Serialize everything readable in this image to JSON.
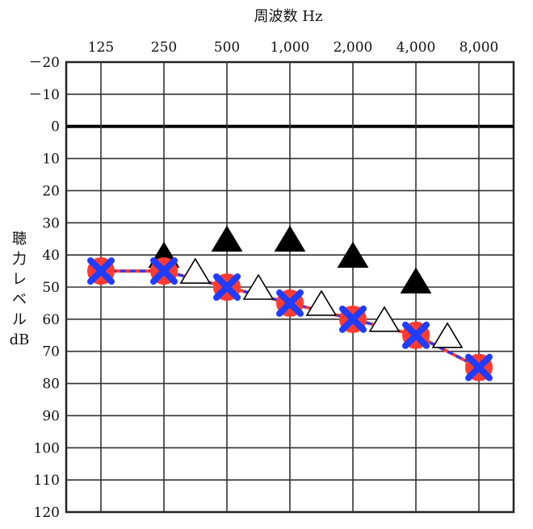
{
  "chart_data": {
    "type": "audiogram",
    "title": "",
    "xlabel": "周波数 Hz",
    "ylabel": "聴力レベル dB",
    "x_categories": [
      "125",
      "250",
      "500",
      "1,000",
      "2,000",
      "4,000",
      "8,000"
    ],
    "x_values_hz": [
      125,
      250,
      500,
      1000,
      2000,
      4000,
      8000
    ],
    "y_ticks": [
      "－20",
      "－10",
      "0",
      "10",
      "20",
      "30",
      "40",
      "50",
      "60",
      "70",
      "80",
      "90",
      "100",
      "110",
      "120"
    ],
    "ylim": [
      -20,
      120
    ],
    "y_inverted": true,
    "grid": true,
    "series": [
      {
        "marker": "circle",
        "color": "#ff3b30",
        "x": [
          125,
          250,
          500,
          1000,
          2000,
          4000,
          8000
        ],
        "values": [
          45,
          45,
          50,
          55,
          60,
          65,
          75
        ]
      },
      {
        "marker": "cross",
        "color": "#1f3cff",
        "x": [
          125,
          250,
          500,
          1000,
          2000,
          4000,
          8000
        ],
        "values": [
          45,
          45,
          50,
          55,
          60,
          65,
          75
        ]
      },
      {
        "marker": "filled-triangle",
        "color": "#000000",
        "x": [
          250,
          500,
          1000,
          2000,
          4000
        ],
        "values": [
          40,
          35,
          35,
          40,
          48
        ]
      },
      {
        "marker": "open-triangle",
        "color": "#000000",
        "x": [
          353,
          707,
          1414,
          2828,
          5657
        ],
        "values": [
          45,
          50,
          55,
          60,
          65
        ]
      }
    ]
  }
}
